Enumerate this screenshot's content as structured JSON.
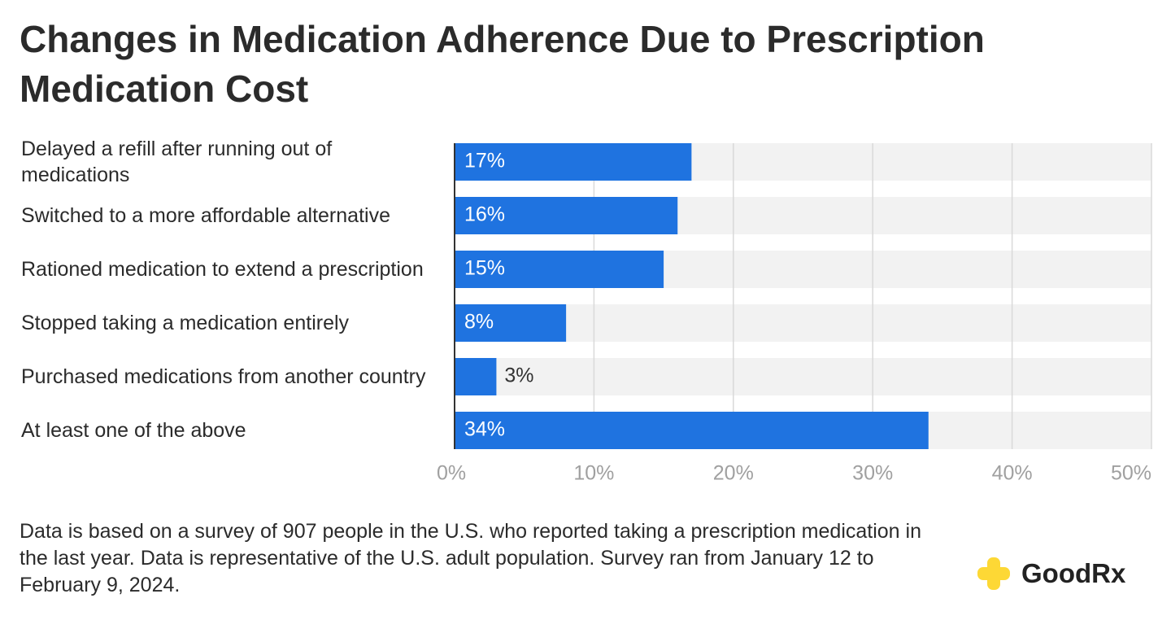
{
  "chart_data": {
    "type": "bar",
    "orientation": "horizontal",
    "title": "Changes in Medication Adherence Due to Prescription Medication Cost",
    "categories": [
      "Delayed a refill after running out of medications",
      "Switched to a more affordable alternative",
      "Rationed medication to extend a prescription",
      "Stopped taking a medication entirely",
      "Purchased medications from another country",
      "At least one of the above"
    ],
    "values": [
      17,
      16,
      15,
      8,
      3,
      34
    ],
    "value_labels": [
      "17%",
      "16%",
      "15%",
      "8%",
      "3%",
      "34%"
    ],
    "color": "#1f73e0",
    "xlim": [
      0,
      50
    ],
    "xticks": [
      {
        "value": 0,
        "label": "0%"
      },
      {
        "value": 10,
        "label": "10%"
      },
      {
        "value": 20,
        "label": "20%"
      },
      {
        "value": 30,
        "label": "30%"
      },
      {
        "value": 40,
        "label": "40%"
      },
      {
        "value": 50,
        "label": "50%"
      }
    ],
    "grid": true,
    "note": "Data is based on a survey of 907 people in the U.S. who reported taking a prescription medication in the last year. Data is representative of the U.S. adult population. Survey ran from January 12 to February 9, 2024.",
    "source_logo": "GoodRx"
  }
}
